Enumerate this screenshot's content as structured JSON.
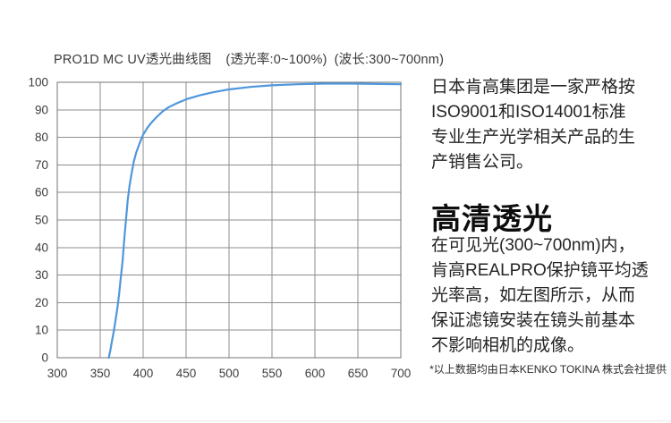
{
  "chart_data": {
    "type": "line",
    "title": "PRO1D MC UV透光曲线图",
    "subtitle_range": "(透光率:0~100%)",
    "subtitle_wavelength": "(波长:300~700nm)",
    "xlabel": "",
    "ylabel": "",
    "xlim": [
      300,
      700
    ],
    "ylim": [
      0,
      100
    ],
    "xticks": [
      300,
      350,
      400,
      450,
      500,
      550,
      600,
      650,
      700
    ],
    "yticks": [
      0,
      10,
      20,
      30,
      40,
      50,
      60,
      70,
      80,
      90,
      100
    ],
    "grid": true,
    "legend": "none",
    "line_color": "#4f97dc",
    "series": [
      {
        "name": "PRO1D MC UV transmittance (%)",
        "points": [
          [
            360,
            0
          ],
          [
            362,
            3
          ],
          [
            364,
            6.5
          ],
          [
            366,
            10
          ],
          [
            368,
            14
          ],
          [
            370,
            18
          ],
          [
            372,
            23
          ],
          [
            374,
            29
          ],
          [
            376,
            35
          ],
          [
            378,
            43
          ],
          [
            380,
            50
          ],
          [
            382,
            57
          ],
          [
            384,
            62
          ],
          [
            386,
            66
          ],
          [
            389,
            71
          ],
          [
            392,
            74.5
          ],
          [
            396,
            78
          ],
          [
            400,
            81
          ],
          [
            405,
            83.5
          ],
          [
            410,
            85.5
          ],
          [
            416,
            87.5
          ],
          [
            423,
            89.5
          ],
          [
            430,
            91
          ],
          [
            440,
            92.5
          ],
          [
            450,
            93.8
          ],
          [
            465,
            95.2
          ],
          [
            480,
            96.3
          ],
          [
            500,
            97.4
          ],
          [
            525,
            98.3
          ],
          [
            550,
            98.9
          ],
          [
            580,
            99.3
          ],
          [
            610,
            99.5
          ],
          [
            645,
            99.5
          ],
          [
            700,
            99.3
          ]
        ]
      }
    ]
  },
  "text_panel": {
    "intro": "日本肯高集团是一家严格按\nISO9001和ISO14001标准\n专业生产光学相关产品的生\n产销售公司。",
    "heading": "高清透光",
    "description": "在可见光(300~700nm)内，\n肯高REALPRO保护镜平均透\n光率高，如左图所示，从而\n保证滤镜安装在镜头前基本\n不影响相机的成像。",
    "footnote": "*以上数据均由日本KENKO TOKINA 株式会社提供"
  }
}
